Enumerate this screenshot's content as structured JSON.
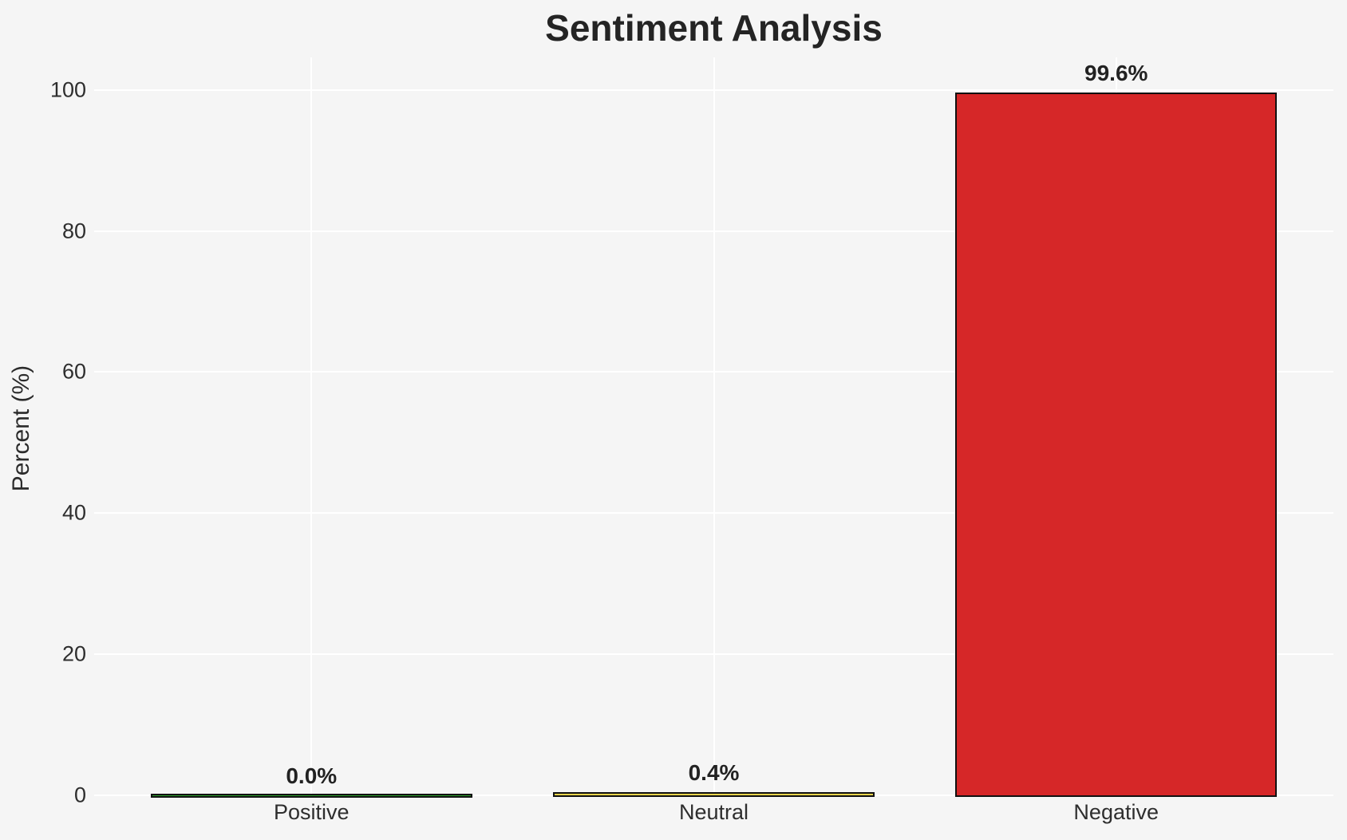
{
  "figure": {
    "title": "Sentiment Analysis",
    "background_color": "#f5f5f5",
    "text_color": "#2b2b2b"
  },
  "chart_data": {
    "type": "bar",
    "title": "Sentiment Analysis",
    "categories": [
      "Positive",
      "Neutral",
      "Negative"
    ],
    "values": [
      0.0,
      0.4,
      99.6
    ],
    "value_labels": [
      "0.0%",
      "0.4%",
      "99.6%"
    ],
    "bar_colors": [
      "#2ca02c",
      "#e8d44c",
      "#d62728"
    ],
    "bar_edge_color": "#111111",
    "xlabel": "",
    "ylabel": "Percent (%)",
    "yticks": [
      0,
      20,
      40,
      60,
      80,
      100
    ],
    "ylim": [
      0,
      104.6
    ],
    "grid": true,
    "grid_color": "#ffffff",
    "legend": null
  }
}
